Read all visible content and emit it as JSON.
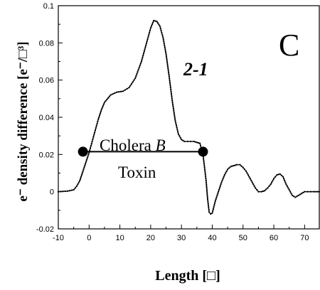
{
  "chart_data": {
    "type": "line",
    "panel_label": "C",
    "xlabel": "Length [□]",
    "ylabel": "e⁻ density difference [e⁻/□³]",
    "xlim": [
      -10,
      75
    ],
    "ylim": [
      -0.02,
      0.1
    ],
    "x_ticks": [
      -10,
      0,
      10,
      20,
      30,
      40,
      50,
      60,
      70
    ],
    "y_ticks": [
      -0.02,
      0,
      0.02,
      0.04,
      0.06,
      0.08,
      0.1
    ],
    "x_tick_labels": [
      "-10",
      "0",
      "10",
      "20",
      "30",
      "40",
      "50",
      "60",
      "70"
    ],
    "y_tick_labels": [
      "-0.02",
      "0",
      "0.02",
      "0.04",
      "0.06",
      "0.08",
      "0.1"
    ],
    "grid": false,
    "series": [
      {
        "label": "2-1",
        "x": [
          -10,
          -7,
          -5,
          -4,
          -3,
          -2,
          -1,
          0,
          1,
          2,
          3,
          4,
          5,
          7,
          9,
          11,
          13,
          15,
          17,
          19,
          20,
          21,
          22,
          23,
          24,
          25,
          26,
          27,
          28,
          29,
          30,
          31,
          32,
          33,
          34,
          35,
          36,
          37,
          38,
          38.5,
          39,
          39.5,
          40,
          41,
          42,
          43,
          44,
          45,
          46,
          47,
          48,
          49,
          50,
          51,
          52,
          53,
          54,
          55,
          56,
          57,
          58,
          59,
          60,
          61,
          62,
          63,
          64,
          65,
          66,
          67,
          68,
          69,
          70,
          71,
          72,
          73,
          75
        ],
        "y": [
          0.0,
          0.0003,
          0.001,
          0.003,
          0.006,
          0.011,
          0.016,
          0.021,
          0.027,
          0.033,
          0.039,
          0.044,
          0.048,
          0.052,
          0.0535,
          0.054,
          0.056,
          0.061,
          0.07,
          0.082,
          0.088,
          0.092,
          0.0915,
          0.089,
          0.083,
          0.074,
          0.062,
          0.049,
          0.038,
          0.031,
          0.028,
          0.027,
          0.027,
          0.027,
          0.027,
          0.0265,
          0.026,
          0.02,
          0.006,
          -0.004,
          -0.011,
          -0.012,
          -0.0115,
          -0.005,
          0.0,
          0.005,
          0.009,
          0.012,
          0.0135,
          0.014,
          0.0145,
          0.0145,
          0.013,
          0.011,
          0.008,
          0.005,
          0.002,
          0.0,
          0.0,
          0.0005,
          0.002,
          0.004,
          0.007,
          0.009,
          0.0095,
          0.008,
          0.004,
          0.001,
          -0.002,
          -0.003,
          -0.002,
          -0.001,
          0.0,
          0.0,
          0.0,
          0.0,
          0.0
        ]
      }
    ],
    "annotations": {
      "segment": {
        "x1": -2,
        "x2": 37,
        "y": 0.0215
      },
      "text_line1_prefix": "Cholera ",
      "text_line1_italic": "B",
      "text_line2": "Toxin"
    }
  }
}
